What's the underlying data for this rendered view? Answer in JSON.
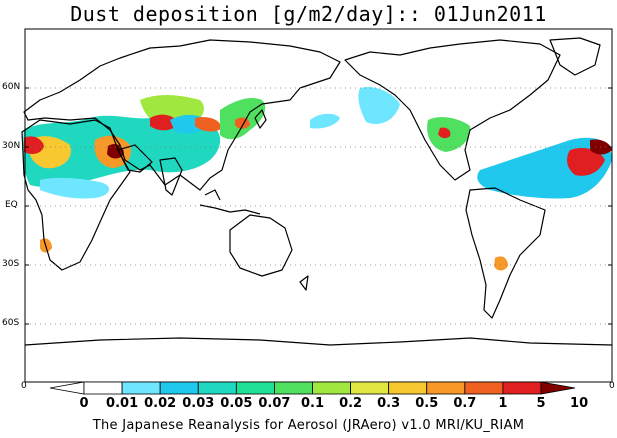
{
  "title": "Dust deposition [g/m2/day]:: 01Jun2011",
  "lat_labels": [
    "60N",
    "30N",
    "EQ",
    "30S",
    "60S"
  ],
  "colorbar": {
    "ticks": [
      "0",
      "0.01",
      "0.02",
      "0.03",
      "0.05",
      "0.07",
      "0.1",
      "0.2",
      "0.3",
      "0.5",
      "0.7",
      "1",
      "5",
      "10"
    ],
    "colors": [
      "#ffffff",
      "#6ee6ff",
      "#20c8ee",
      "#20d8c0",
      "#20e098",
      "#50e060",
      "#a0e840",
      "#e0e840",
      "#f8c830",
      "#f89828",
      "#f06020",
      "#e02020",
      "#b01010",
      "#800000"
    ],
    "edge_labels": [
      "0",
      "0"
    ]
  },
  "footer": "The Japanese Reanalysis for Aerosol (JRAero) v1.0 MRI/KU_RIAM"
}
